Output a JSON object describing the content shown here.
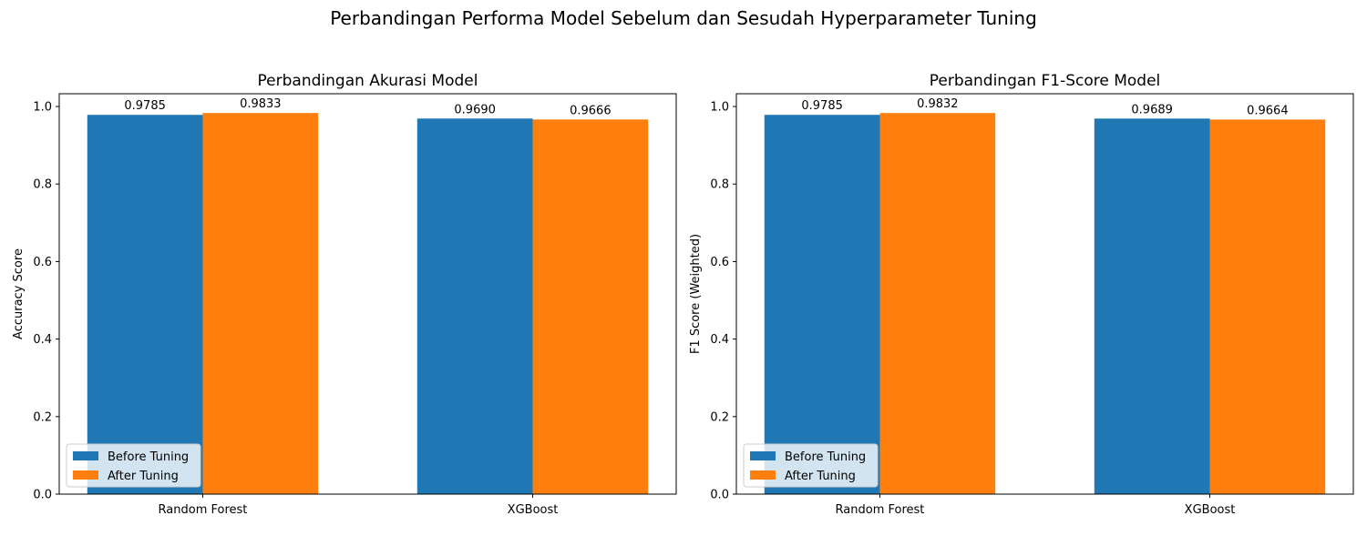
{
  "suptitle": "Perbandingan Performa Model Sebelum dan Sesudah Hyperparameter Tuning",
  "colors": {
    "before": "#1f77b4",
    "after": "#ff7f0e"
  },
  "chart_data": [
    {
      "type": "bar",
      "title": "Perbandingan Akurasi Model",
      "xlabel": "",
      "ylabel": "Accuracy Score",
      "categories": [
        "Random Forest",
        "XGBoost"
      ],
      "series": [
        {
          "name": "Before Tuning",
          "values": [
            0.9785,
            0.969
          ],
          "labels": [
            "0.9785",
            "0.9690"
          ]
        },
        {
          "name": "After Tuning",
          "values": [
            0.9833,
            0.9666
          ],
          "labels": [
            "0.9833",
            "0.9666"
          ]
        }
      ],
      "ylim": [
        0,
        1.033
      ],
      "yticks": [
        0.0,
        0.2,
        0.4,
        0.6,
        0.8,
        1.0
      ],
      "ytick_labels": [
        "0.0",
        "0.2",
        "0.4",
        "0.6",
        "0.8",
        "1.0"
      ],
      "legend_position": "lower-left",
      "grid": false
    },
    {
      "type": "bar",
      "title": "Perbandingan F1-Score Model",
      "xlabel": "",
      "ylabel": "F1 Score (Weighted)",
      "categories": [
        "Random Forest",
        "XGBoost"
      ],
      "series": [
        {
          "name": "Before Tuning",
          "values": [
            0.9785,
            0.9689
          ],
          "labels": [
            "0.9785",
            "0.9689"
          ]
        },
        {
          "name": "After Tuning",
          "values": [
            0.9832,
            0.9664
          ],
          "labels": [
            "0.9832",
            "0.9664"
          ]
        }
      ],
      "ylim": [
        0,
        1.033
      ],
      "yticks": [
        0.0,
        0.2,
        0.4,
        0.6,
        0.8,
        1.0
      ],
      "ytick_labels": [
        "0.0",
        "0.2",
        "0.4",
        "0.6",
        "0.8",
        "1.0"
      ],
      "legend_position": "lower-left",
      "grid": false
    }
  ]
}
